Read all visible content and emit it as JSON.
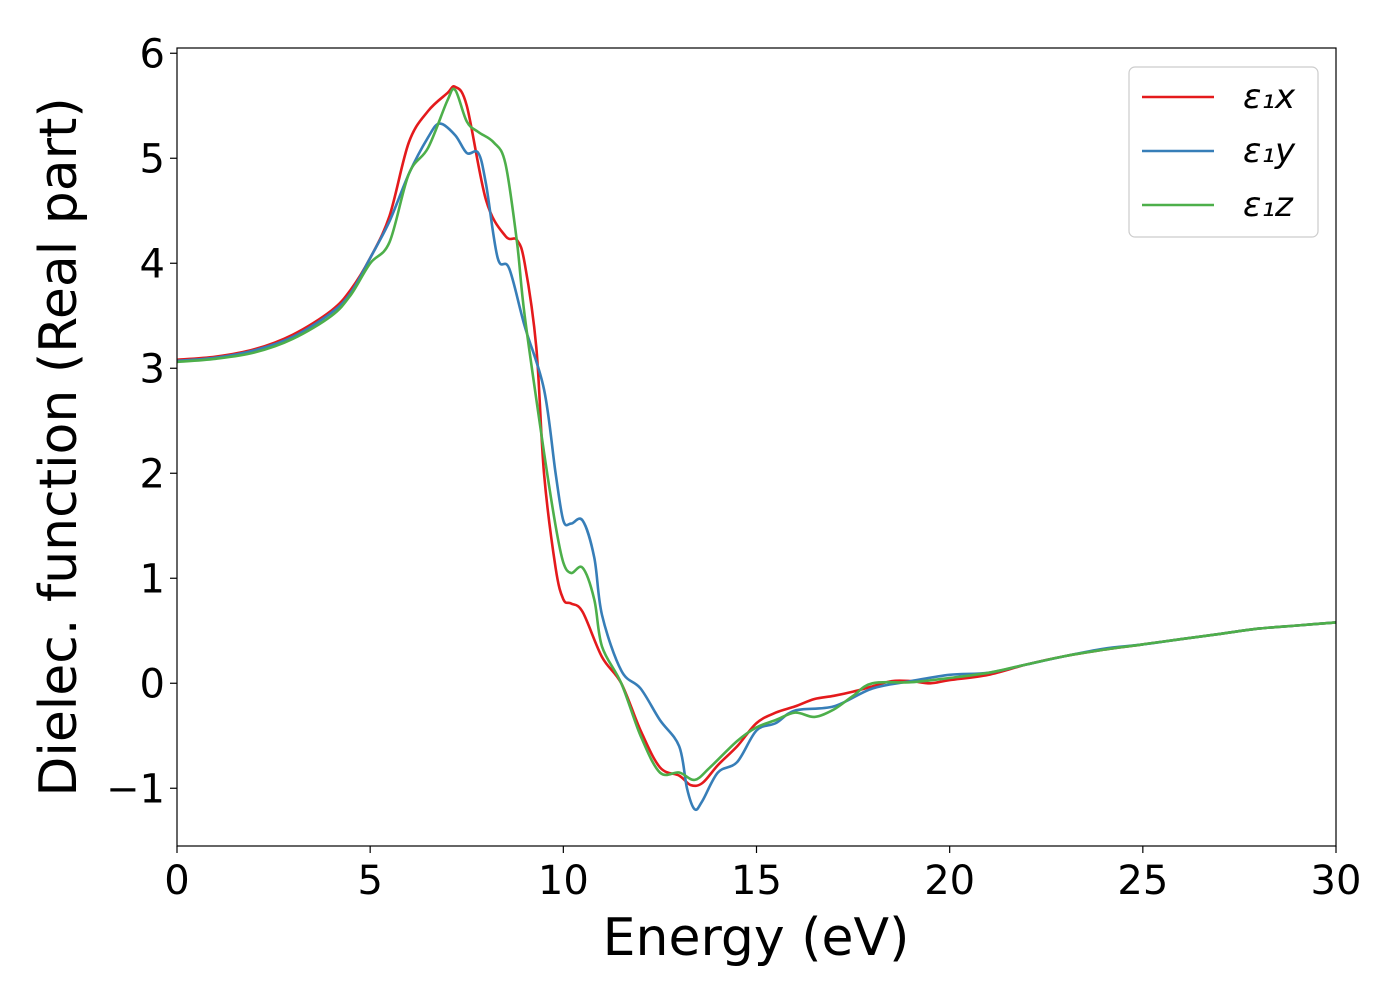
{
  "chart_data": {
    "type": "line",
    "title": "",
    "xlabel": "Energy (eV)",
    "ylabel": "Dielec. function (Real part)",
    "xlim": [
      0,
      30
    ],
    "ylim": [
      -1.55,
      6.05
    ],
    "xticks": [
      0,
      5,
      10,
      15,
      20,
      25,
      30
    ],
    "xtick_labels": [
      "0",
      "5",
      "10",
      "15",
      "20",
      "25",
      "30"
    ],
    "yticks": [
      -1,
      0,
      1,
      2,
      3,
      4,
      5,
      6
    ],
    "ytick_labels": [
      "−1",
      "0",
      "1",
      "2",
      "3",
      "4",
      "5",
      "6"
    ],
    "grid": false,
    "legend_position": "top-right",
    "series": [
      {
        "name": "ε₁x",
        "color": "#e41a1c",
        "x": [
          0,
          1,
          2,
          3,
          4,
          4.5,
          5,
          5.5,
          6,
          6.5,
          7,
          7.2,
          7.5,
          8,
          8.5,
          8.8,
          9,
          9.3,
          9.5,
          9.8,
          10,
          10.2,
          10.5,
          11,
          11.5,
          12,
          12.5,
          13,
          13.3,
          13.6,
          14,
          14.5,
          15,
          15.5,
          16,
          16.5,
          17,
          17.5,
          18,
          18.5,
          19,
          19.5,
          20,
          21,
          22,
          23,
          24,
          25,
          26,
          27,
          28,
          29,
          30
        ],
        "y": [
          3.08,
          3.11,
          3.18,
          3.32,
          3.55,
          3.75,
          4.05,
          4.45,
          5.15,
          5.45,
          5.62,
          5.68,
          5.5,
          4.6,
          4.26,
          4.22,
          4.0,
          3.2,
          2.0,
          1.1,
          0.8,
          0.76,
          0.68,
          0.25,
          0.0,
          -0.45,
          -0.8,
          -0.88,
          -0.97,
          -0.95,
          -0.78,
          -0.6,
          -0.38,
          -0.28,
          -0.22,
          -0.15,
          -0.12,
          -0.08,
          -0.03,
          0.02,
          0.02,
          0.0,
          0.03,
          0.08,
          0.18,
          0.26,
          0.32,
          0.37,
          0.42,
          0.47,
          0.52,
          0.55,
          0.58
        ]
      },
      {
        "name": "ε₁y",
        "color": "#377eb8",
        "x": [
          0,
          1,
          2,
          3,
          4,
          4.5,
          5,
          5.5,
          6,
          6.5,
          6.8,
          7.2,
          7.5,
          7.8,
          8,
          8.3,
          8.6,
          9,
          9.5,
          9.8,
          10,
          10.2,
          10.5,
          10.8,
          11,
          11.5,
          12,
          12.5,
          13,
          13.2,
          13.4,
          13.6,
          14,
          14.5,
          15,
          15.5,
          16,
          17,
          18,
          19,
          20,
          21,
          22,
          23,
          24,
          25,
          26,
          27,
          28,
          29,
          30
        ],
        "y": [
          3.07,
          3.1,
          3.17,
          3.3,
          3.53,
          3.72,
          4.05,
          4.4,
          4.85,
          5.2,
          5.33,
          5.22,
          5.05,
          5.05,
          4.75,
          4.05,
          3.95,
          3.4,
          2.8,
          2.0,
          1.55,
          1.52,
          1.55,
          1.2,
          0.65,
          0.12,
          -0.05,
          -0.35,
          -0.6,
          -1.0,
          -1.2,
          -1.12,
          -0.85,
          -0.75,
          -0.45,
          -0.38,
          -0.26,
          -0.22,
          -0.05,
          0.02,
          0.08,
          0.1,
          0.18,
          0.26,
          0.33,
          0.37,
          0.42,
          0.47,
          0.52,
          0.55,
          0.58
        ]
      },
      {
        "name": "ε₁z",
        "color": "#4daf4a",
        "x": [
          0,
          1,
          2,
          3,
          4,
          4.5,
          5,
          5.5,
          6,
          6.5,
          7,
          7.2,
          7.5,
          7.8,
          8.2,
          8.5,
          8.8,
          9,
          9.5,
          9.8,
          10,
          10.2,
          10.5,
          10.8,
          11,
          11.5,
          12,
          12.5,
          13,
          13.4,
          13.8,
          14.5,
          15,
          15.5,
          16,
          16.5,
          17,
          17.5,
          18,
          19,
          20,
          21,
          22,
          23,
          24,
          25,
          26,
          27,
          28,
          29,
          30
        ],
        "y": [
          3.06,
          3.09,
          3.15,
          3.28,
          3.5,
          3.7,
          4.0,
          4.2,
          4.85,
          5.1,
          5.55,
          5.65,
          5.35,
          5.25,
          5.15,
          4.95,
          4.2,
          3.5,
          2.2,
          1.5,
          1.15,
          1.05,
          1.1,
          0.8,
          0.35,
          0.0,
          -0.5,
          -0.85,
          -0.85,
          -0.92,
          -0.8,
          -0.55,
          -0.42,
          -0.35,
          -0.28,
          -0.32,
          -0.25,
          -0.12,
          0.0,
          0.01,
          0.05,
          0.1,
          0.18,
          0.26,
          0.32,
          0.37,
          0.42,
          0.47,
          0.52,
          0.55,
          0.58
        ]
      }
    ]
  }
}
